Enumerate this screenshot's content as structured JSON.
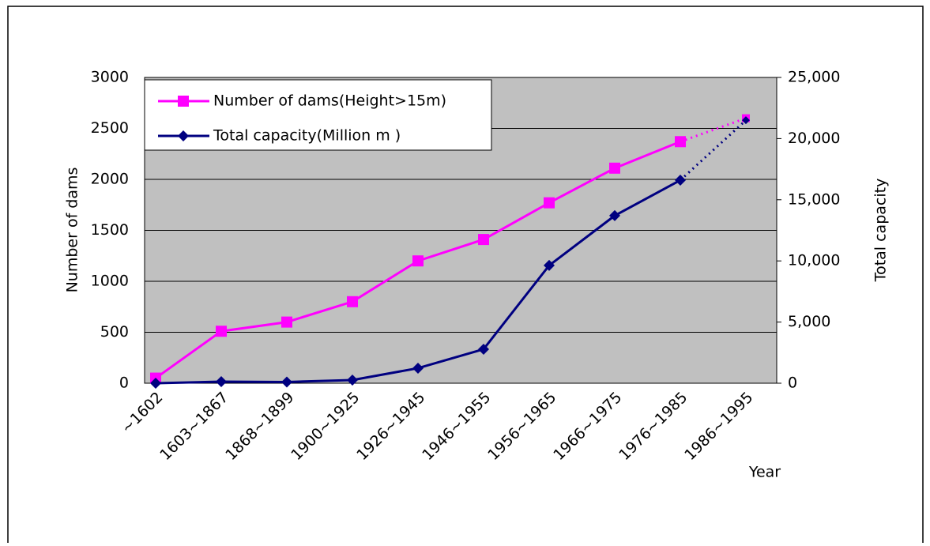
{
  "chart_data": {
    "type": "line",
    "categories": [
      "~1602",
      "1603~1867",
      "1868~1899",
      "1900~1925",
      "1926~1945",
      "1946~1955",
      "1956~1965",
      "1966~1975",
      "1976~1985",
      "1986~1995"
    ],
    "series": [
      {
        "name": "Number of dams(Height>15m)",
        "color": "#ff00ff",
        "marker": "square",
        "axis": "y",
        "values": [
          50,
          510,
          600,
          800,
          1200,
          1410,
          1770,
          2110,
          2370,
          2600
        ]
      },
      {
        "name": "Total capacity(Million m  )",
        "color": "#000080",
        "marker": "diamond",
        "axis": "y2",
        "values": [
          0,
          130,
          100,
          260,
          1230,
          2780,
          9630,
          13700,
          16600,
          21500
        ]
      }
    ],
    "last_segment_dotted": true,
    "y_label": "Number of dams",
    "y2_label": "Total capacity",
    "x_label": "Year",
    "ylim": [
      0,
      3000
    ],
    "yticks": [
      0,
      500,
      1000,
      1500,
      2000,
      2500,
      3000
    ],
    "y2lim": [
      0,
      25000
    ],
    "y2ticks": [
      {
        "value": 0,
        "label": "0"
      },
      {
        "value": 5000,
        "label": "5,000"
      },
      {
        "value": 10000,
        "label": "10,000"
      },
      {
        "value": 15000,
        "label": "15,000"
      },
      {
        "value": 20000,
        "label": "20,000"
      },
      {
        "value": 25000,
        "label": "25,000"
      }
    ],
    "grid": true,
    "legend": "top-left",
    "background": "#c0c0c0"
  }
}
